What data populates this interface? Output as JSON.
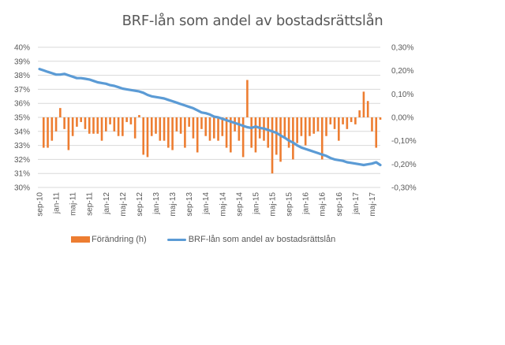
{
  "chart_data": {
    "type": "bar+line",
    "title": "BRF-lån som andel av bostadsrättslån",
    "x_tick_labels": [
      "sep-10",
      "jan-11",
      "maj-11",
      "sep-11",
      "jan-12",
      "maj-12",
      "sep-12",
      "jan-13",
      "maj-13",
      "sep-13",
      "jan-14",
      "maj-14",
      "sep-14",
      "jan-15",
      "maj-15",
      "sep-15",
      "jan-16",
      "maj-16",
      "sep-16",
      "jan-17",
      "maj-17"
    ],
    "x_start": "sep-10",
    "x_end": "jul-17",
    "months_count": 83,
    "left_axis": {
      "ylim": [
        30,
        40
      ],
      "tick_labels": [
        "30%",
        "31%",
        "32%",
        "33%",
        "34%",
        "35%",
        "36%",
        "37%",
        "38%",
        "39%",
        "40%"
      ]
    },
    "right_axis": {
      "ylim": [
        -0.3,
        0.3
      ],
      "tick_labels": [
        "-0,30%",
        "-0,20%",
        "-0,10%",
        "0,00%",
        "0,10%",
        "0,20%",
        "0,30%"
      ]
    },
    "grid": true,
    "legend_position": "bottom",
    "series": [
      {
        "name": "Förändring (h)",
        "type": "bar",
        "axis": "right",
        "color": "#ED7D31",
        "unit": "percentage points",
        "values": [
          0,
          -0.13,
          -0.13,
          -0.1,
          -0.06,
          0.04,
          -0.05,
          -0.14,
          -0.08,
          -0.04,
          -0.02,
          -0.05,
          -0.07,
          -0.07,
          -0.07,
          -0.1,
          -0.06,
          -0.03,
          -0.06,
          -0.08,
          -0.08,
          -0.02,
          -0.03,
          -0.09,
          0.01,
          -0.16,
          -0.17,
          -0.08,
          -0.07,
          -0.1,
          -0.1,
          -0.13,
          -0.14,
          -0.06,
          -0.07,
          -0.13,
          -0.04,
          -0.09,
          -0.15,
          -0.05,
          -0.08,
          -0.1,
          -0.09,
          -0.1,
          -0.08,
          -0.13,
          -0.15,
          -0.06,
          -0.1,
          -0.17,
          0.16,
          -0.13,
          -0.15,
          -0.09,
          -0.1,
          -0.13,
          -0.24,
          -0.16,
          -0.19,
          -0.09,
          -0.13,
          -0.18,
          -0.11,
          -0.08,
          -0.12,
          -0.08,
          -0.07,
          -0.06,
          -0.18,
          -0.08,
          -0.03,
          -0.05,
          -0.1,
          -0.03,
          -0.05,
          -0.02,
          -0.03,
          0.03,
          0.11,
          0.07,
          -0.06,
          -0.13,
          -0.01
        ]
      },
      {
        "name": "BRF-lån som andel av bostadsrättslån",
        "type": "line",
        "axis": "left",
        "color": "#5B9BD5",
        "unit": "percent",
        "values": [
          38.45,
          38.35,
          38.25,
          38.15,
          38.05,
          38.05,
          38.1,
          38.0,
          37.9,
          37.8,
          37.8,
          37.75,
          37.7,
          37.6,
          37.5,
          37.45,
          37.4,
          37.3,
          37.25,
          37.15,
          37.05,
          37.0,
          36.95,
          36.9,
          36.85,
          36.75,
          36.6,
          36.5,
          36.45,
          36.4,
          36.35,
          36.25,
          36.15,
          36.05,
          35.95,
          35.85,
          35.75,
          35.65,
          35.5,
          35.35,
          35.3,
          35.2,
          35.05,
          35.0,
          34.9,
          34.8,
          34.7,
          34.6,
          34.5,
          34.4,
          34.3,
          34.25,
          34.35,
          34.25,
          34.2,
          34.1,
          34.0,
          33.9,
          33.7,
          33.55,
          33.35,
          33.2,
          33.0,
          32.85,
          32.75,
          32.65,
          32.55,
          32.45,
          32.35,
          32.25,
          32.1,
          32.0,
          31.95,
          31.9,
          31.8,
          31.75,
          31.7,
          31.65,
          31.6,
          31.65,
          31.7,
          31.8,
          31.6
        ]
      }
    ]
  }
}
